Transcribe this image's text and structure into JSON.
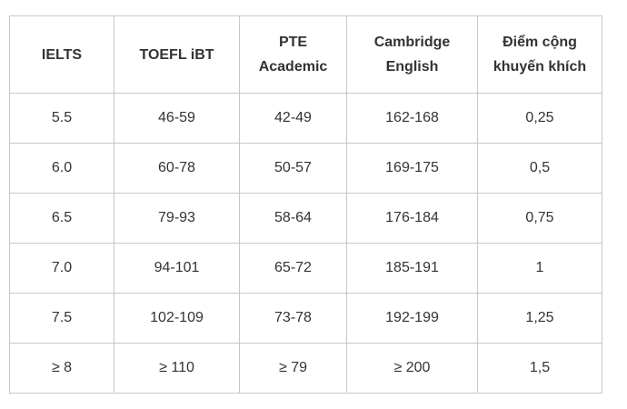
{
  "table": {
    "header": [
      "IELTS",
      "TOEFL iBT",
      "PTE Academic",
      "Cambridge English",
      "Điểm cộng khuyến khích"
    ],
    "rows": [
      [
        "5.5",
        "46-59",
        "42-49",
        "162-168",
        "0,25"
      ],
      [
        "6.0",
        "60-78",
        "50-57",
        "169-175",
        "0,5"
      ],
      [
        "6.5",
        "79-93",
        "58-64",
        "176-184",
        "0,75"
      ],
      [
        "7.0",
        "94-101",
        "65-72",
        "185-191",
        "1"
      ],
      [
        "7.5",
        "102-109",
        "73-78",
        "192-199",
        "1,25"
      ],
      [
        "≥ 8",
        "≥ 110",
        "≥ 79",
        "≥ 200",
        "1,5"
      ]
    ]
  }
}
